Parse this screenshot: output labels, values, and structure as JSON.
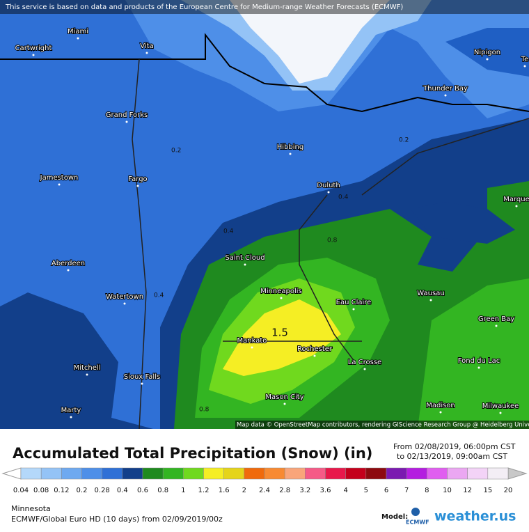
{
  "header": {
    "notice": "This service is based on data and products of the European Centre for Medium-range Weather Forecasts (ECMWF)"
  },
  "map": {
    "cities": [
      "Miami",
      "Cartwright",
      "Vita",
      "Nipigon",
      "Te",
      "Thunder Bay",
      "Grand Forks",
      "Hibbing",
      "Jamestown",
      "Fargo",
      "Duluth",
      "Marque",
      "Saint Cloud",
      "Aberdeen",
      "Minneapolis",
      "Watertown",
      "Wausau",
      "Eau Claire",
      "Green Bay",
      "Mankato",
      "Rochester",
      "La Crosse",
      "Fond du Lac",
      "Mitchell",
      "Sioux Falls",
      "Mason City",
      "Madison",
      "Milwaukee",
      "Marty"
    ],
    "contour_labels": [
      "0.2",
      "0.2",
      "0.4",
      "0.4",
      "0.4",
      "0.8",
      "0.8"
    ],
    "max_label": "1.5",
    "attribution": "Map data © OpenStreetMap contributors, rendering GIScience Research Group @ Heidelberg University"
  },
  "legend": {
    "title": "Accumulated Total Precipitation (Snow) (in)",
    "from": "From 02/08/2019, 06:00pm CST",
    "to": "to 02/13/2019, 09:00am CST",
    "ticks": [
      "0.04",
      "0.08",
      "0.12",
      "0.2",
      "0.28",
      "0.4",
      "0.6",
      "0.8",
      "1",
      "1.2",
      "1.6",
      "2",
      "2.4",
      "2.8",
      "3.2",
      "3.6",
      "4",
      "5",
      "6",
      "7",
      "8",
      "10",
      "12",
      "15",
      "20"
    ],
    "colors": [
      "#b4d8fa",
      "#94c3f6",
      "#6ea9f0",
      "#4e8fe8",
      "#2f70d6",
      "#123f8a",
      "#1f8a1f",
      "#33b522",
      "#70d91e",
      "#f5ee24",
      "#e5d41a",
      "#f06a0c",
      "#f88a32",
      "#f9a57a",
      "#f55a87",
      "#e8184b",
      "#c4001c",
      "#8d0a0f",
      "#7b1ab0",
      "#b41de0",
      "#e05ef0",
      "#eba7f2",
      "#f3d3f7",
      "#f3eef5"
    ]
  },
  "footer": {
    "region": "Minnesota",
    "model_run": "ECMWF/Global Euro HD (10 days) from 02/09/2019/00z",
    "model_label": "Model:",
    "model_logo": "ECMWF",
    "brand": "weather.us"
  }
}
